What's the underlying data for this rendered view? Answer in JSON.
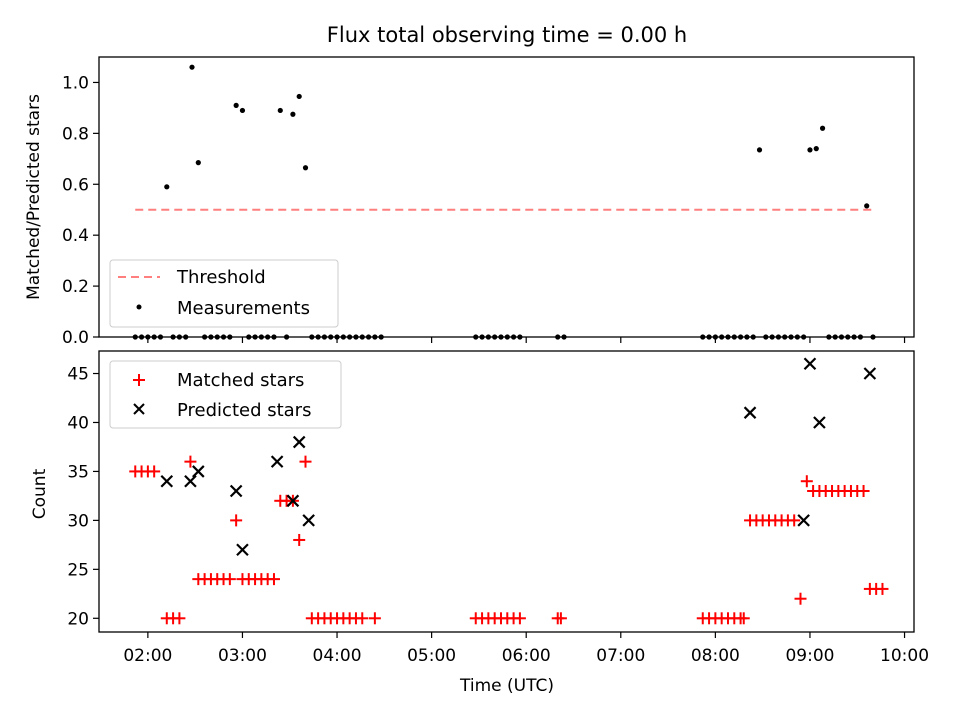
{
  "figure": {
    "title": "Flux total observing time = 0.00 h"
  },
  "chart_data": [
    {
      "type": "scatter",
      "panel": "top",
      "title": "Flux total observing time = 0.00 h",
      "ylabel": "Matched/Predicted stars",
      "xlabel": "",
      "xlim": [
        "01:29",
        "10:06"
      ],
      "ylim": [
        0,
        1.1
      ],
      "yticks": [
        0.0,
        0.2,
        0.4,
        0.6,
        0.8,
        1.0
      ],
      "ytick_labels": [
        "0.0",
        "0.2",
        "0.4",
        "0.6",
        "0.8",
        "1.0"
      ],
      "xticks": [
        "02:00",
        "03:00",
        "04:00",
        "05:00",
        "06:00",
        "07:00",
        "08:00",
        "09:00",
        "10:00"
      ],
      "grid": false,
      "legend_placement": "lower-left",
      "series": [
        {
          "name": "Threshold",
          "style": "dashed-line",
          "color": "#ff7f7f",
          "x": [
            "01:52",
            "09:42"
          ],
          "y": [
            0.5,
            0.5
          ]
        },
        {
          "name": "Measurements",
          "style": "dot",
          "color": "#000000",
          "x": [
            "01:52",
            "01:56",
            "02:00",
            "02:04",
            "02:08",
            "02:12",
            "02:16",
            "02:20",
            "02:24",
            "02:28",
            "02:32",
            "02:36",
            "02:40",
            "02:44",
            "02:48",
            "02:52",
            "02:56",
            "03:00",
            "03:04",
            "03:08",
            "03:12",
            "03:16",
            "03:20",
            "03:24",
            "03:28",
            "03:32",
            "03:36",
            "03:40",
            "03:44",
            "03:48",
            "03:52",
            "03:56",
            "04:00",
            "04:04",
            "04:08",
            "04:12",
            "04:16",
            "04:20",
            "04:24",
            "04:28",
            "05:28",
            "05:32",
            "05:36",
            "05:40",
            "05:44",
            "05:48",
            "05:52",
            "05:56",
            "06:20",
            "06:24",
            "07:52",
            "07:56",
            "08:00",
            "08:04",
            "08:08",
            "08:12",
            "08:16",
            "08:20",
            "08:24",
            "08:28",
            "08:32",
            "08:36",
            "08:40",
            "08:44",
            "08:48",
            "08:52",
            "08:56",
            "09:00",
            "09:04",
            "09:08",
            "09:12",
            "09:16",
            "09:20",
            "09:24",
            "09:28",
            "09:32",
            "09:36",
            "09:40"
          ],
          "y": [
            0,
            0,
            0,
            0,
            0,
            0.59,
            0,
            0,
            0,
            1.06,
            0.685,
            0,
            0,
            0,
            0,
            0,
            0.91,
            0.89,
            0,
            0,
            0,
            0,
            0,
            0.89,
            0,
            0.875,
            0.945,
            0.665,
            0,
            0,
            0,
            0,
            0,
            0,
            0,
            0,
            0,
            0,
            0,
            0,
            0,
            0,
            0,
            0,
            0,
            0,
            0,
            0,
            0,
            0,
            0,
            0,
            0,
            0,
            0,
            0,
            0,
            0,
            0,
            0.735,
            0,
            0,
            0,
            0,
            0,
            0,
            0,
            0.735,
            0.74,
            0.82,
            0,
            0,
            0,
            0,
            0,
            0,
            0.515,
            0
          ]
        }
      ],
      "legend": [
        "Threshold",
        "Measurements"
      ]
    },
    {
      "type": "scatter",
      "panel": "bottom",
      "ylabel": "Count",
      "xlabel": "Time (UTC)",
      "xlim": [
        "01:29",
        "10:06"
      ],
      "ylim": [
        18.6,
        47.3
      ],
      "yticks": [
        20,
        25,
        30,
        35,
        40,
        45
      ],
      "ytick_labels": [
        "20",
        "25",
        "30",
        "35",
        "40",
        "45"
      ],
      "xticks": [
        "02:00",
        "03:00",
        "04:00",
        "05:00",
        "06:00",
        "07:00",
        "08:00",
        "09:00",
        "10:00"
      ],
      "grid": false,
      "legend_placement": "upper-left",
      "series": [
        {
          "name": "Matched stars",
          "style": "plus",
          "color": "#ff0000",
          "x": [
            "01:52",
            "01:56",
            "02:00",
            "02:04",
            "02:12",
            "02:16",
            "02:20",
            "02:27",
            "02:32",
            "02:36",
            "02:40",
            "02:44",
            "02:48",
            "02:52",
            "02:56",
            "03:00",
            "03:04",
            "03:08",
            "03:12",
            "03:16",
            "03:20",
            "03:24",
            "03:28",
            "03:32",
            "03:36",
            "03:40",
            "03:44",
            "03:48",
            "03:52",
            "03:56",
            "04:00",
            "04:04",
            "04:08",
            "04:12",
            "04:16",
            "04:24",
            "05:28",
            "05:32",
            "05:36",
            "05:40",
            "05:44",
            "05:48",
            "05:52",
            "05:56",
            "06:20",
            "06:22",
            "07:52",
            "07:56",
            "08:00",
            "08:04",
            "08:08",
            "08:12",
            "08:16",
            "08:18",
            "08:22",
            "08:26",
            "08:30",
            "08:34",
            "08:38",
            "08:42",
            "08:46",
            "08:50",
            "08:54",
            "08:58",
            "09:02",
            "09:06",
            "09:10",
            "09:14",
            "09:18",
            "09:22",
            "09:26",
            "09:30",
            "09:34",
            "09:38",
            "09:42",
            "09:46"
          ],
          "y": [
            35,
            35,
            35,
            35,
            20,
            20,
            20,
            36,
            24,
            24,
            24,
            24,
            24,
            24,
            30,
            24,
            24,
            24,
            24,
            24,
            24,
            32,
            32,
            32,
            28,
            36,
            20,
            20,
            20,
            20,
            20,
            20,
            20,
            20,
            20,
            20,
            20,
            20,
            20,
            20,
            20,
            20,
            20,
            20,
            20,
            20,
            20,
            20,
            20,
            20,
            20,
            20,
            20,
            20,
            30,
            30,
            30,
            30,
            30,
            30,
            30,
            30,
            22,
            34,
            33,
            33,
            33,
            33,
            33,
            33,
            33,
            33,
            33,
            23,
            23,
            23
          ]
        },
        {
          "name": "Predicted stars",
          "style": "x",
          "color": "#000000",
          "x": [
            "02:12",
            "02:27",
            "02:32",
            "02:56",
            "03:00",
            "03:22",
            "03:32",
            "03:36",
            "03:42",
            "08:22",
            "08:56",
            "09:00",
            "09:06",
            "09:38"
          ],
          "y": [
            34,
            34,
            35,
            33,
            27,
            36,
            32,
            38,
            30,
            41,
            30,
            46,
            40,
            45
          ]
        }
      ],
      "legend": [
        "Matched stars",
        "Predicted stars"
      ]
    }
  ]
}
